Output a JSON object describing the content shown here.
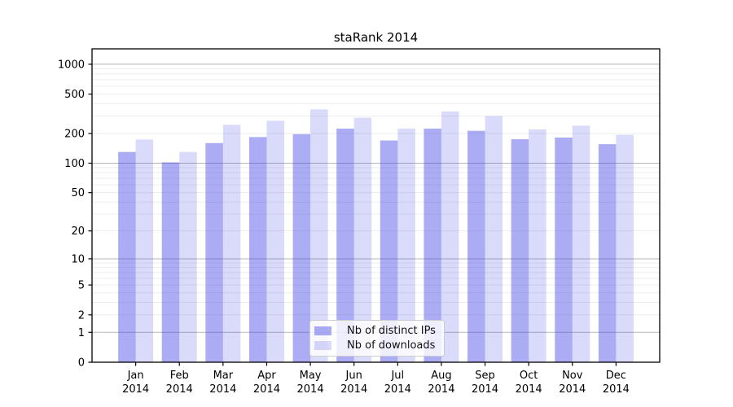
{
  "chart_data": {
    "type": "bar",
    "title": "staRank 2014",
    "categories": [
      "Jan",
      "Feb",
      "Mar",
      "Apr",
      "May",
      "Jun",
      "Jul",
      "Aug",
      "Sep",
      "Oct",
      "Nov",
      "Dec"
    ],
    "x_tick_year": "2014",
    "series": [
      {
        "name": "Nb of distinct IPs",
        "color": "rgba(70,70,230,0.45)",
        "values": [
          130,
          102,
          160,
          184,
          197,
          224,
          170,
          224,
          213,
          175,
          182,
          156
        ]
      },
      {
        "name": "Nb of downloads",
        "color": "rgba(70,70,230,0.20)",
        "values": [
          174,
          130,
          245,
          269,
          351,
          289,
          224,
          334,
          300,
          220,
          240,
          194
        ]
      }
    ],
    "yscale": "log1p",
    "ylim": [
      0,
      1430
    ],
    "y_ticks": [
      0,
      1,
      2,
      5,
      10,
      20,
      50,
      100,
      200,
      500,
      1000
    ],
    "grid": "major and minor horizontal gridlines",
    "legend_position": "lower center inside plot"
  },
  "colors": {
    "background": "#ffffff",
    "spine": "#000000",
    "tick_text": "#000000",
    "major_grid": "#b5b5b5",
    "minor_grid": "#ededed"
  }
}
